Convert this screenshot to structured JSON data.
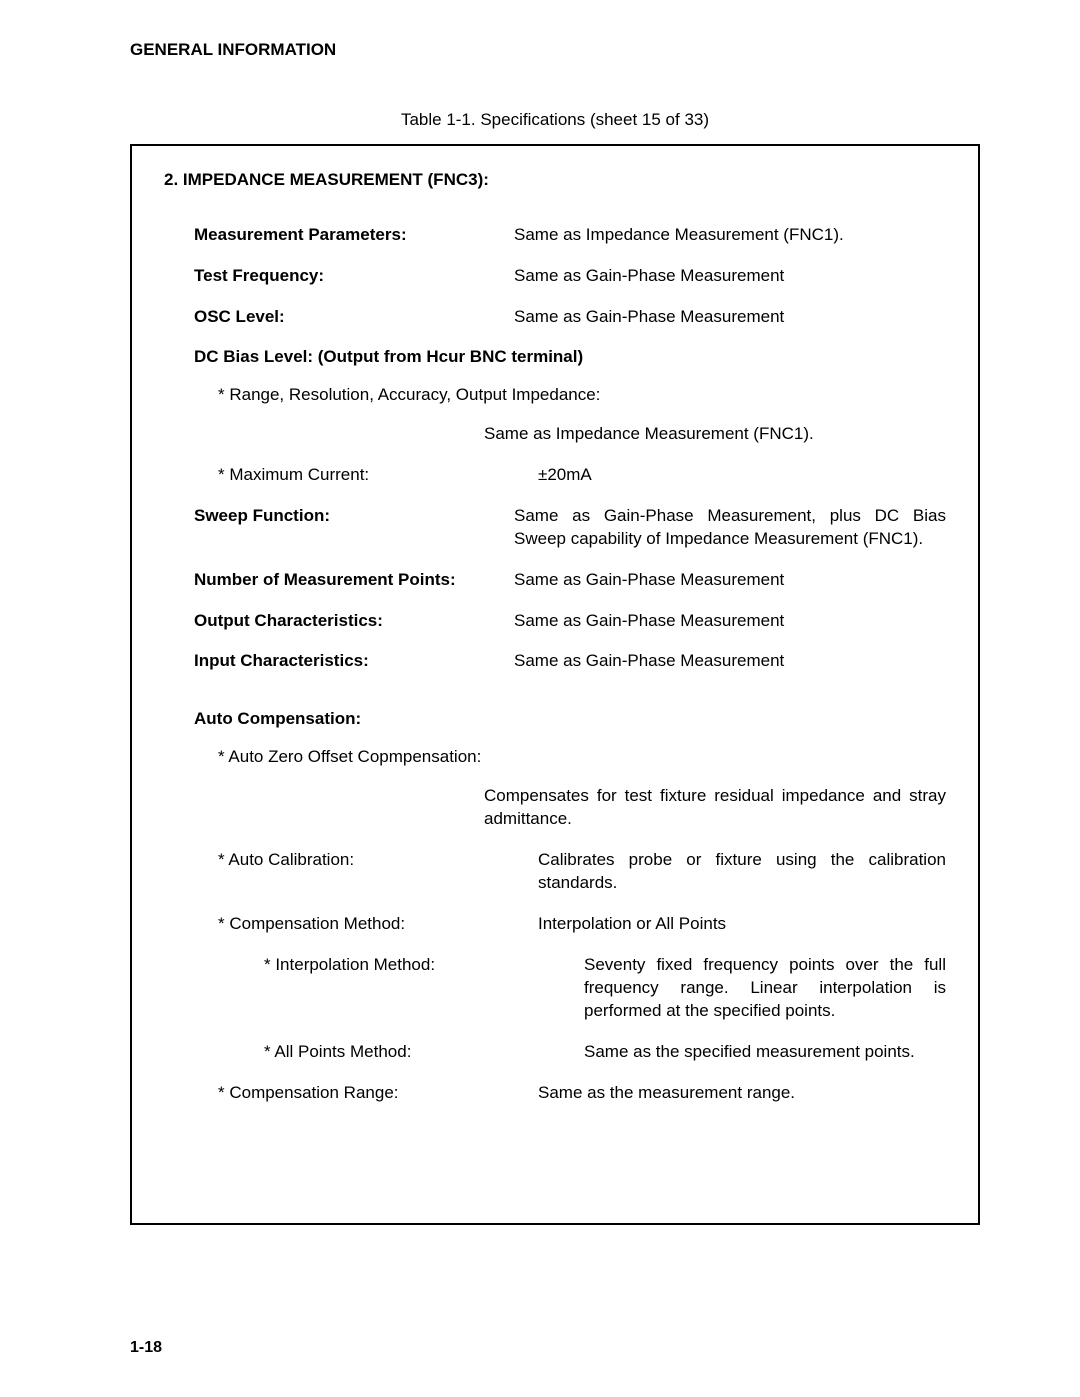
{
  "header": "GENERAL INFORMATION",
  "tableCaption": "Table 1-1. Specifications (sheet 15 of 33)",
  "sectionTitle": "2. IMPEDANCE MEASUREMENT (FNC3):",
  "rows": [
    {
      "label": "Measurement Parameters:",
      "value": "Same as Impedance Measurement (FNC1).",
      "bold": true,
      "indent": 1
    },
    {
      "label": "Test Frequency:",
      "value": "Same as Gain-Phase Measurement",
      "bold": true,
      "indent": 1
    },
    {
      "label": "OSC Level:",
      "value": "Same as Gain-Phase Measurement",
      "bold": true,
      "indent": 1
    }
  ],
  "dcBiasLabel": "DC Bias Level: (Output from Hcur BNC terminal)",
  "dcBiasRows": [
    {
      "label": "* Range, Resolution, Accuracy, Output Impedance:",
      "value": "Same as Impedance Measurement (FNC1).",
      "indent": 2,
      "stack": true
    },
    {
      "label": "* Maximum Current:",
      "value": "±20mA",
      "indent": 2
    }
  ],
  "moreRows": [
    {
      "label": "Sweep Function:",
      "value": "Same as Gain-Phase Measurement, plus DC Bias Sweep capability of Impedance Measurement (FNC1).",
      "bold": true,
      "indent": 1
    },
    {
      "label": "Number of Measurement Points:",
      "value": "Same as Gain-Phase Measurement",
      "bold": true,
      "indent": 1
    },
    {
      "label": "Output Characteristics:",
      "value": "Same as Gain-Phase Measurement",
      "bold": true,
      "indent": 1
    },
    {
      "label": "Input Characteristics:",
      "value": "Same as Gain-Phase Measurement",
      "bold": true,
      "indent": 1
    }
  ],
  "autoCompLabel": "Auto Compensation:",
  "autoCompRows": [
    {
      "label": "* Auto Zero Offset Copmpensation:",
      "value": "Compensates for test fixture residual impedance and stray admittance.",
      "indent": 2,
      "stack": true
    },
    {
      "label": "* Auto Calibration:",
      "value": "Calibrates probe or fixture using the calibration standards.",
      "indent": 2
    },
    {
      "label": "* Compensation Method:",
      "value": "Interpolation or All Points",
      "indent": 2
    },
    {
      "label": "* Interpolation Method:",
      "value": "Seventy fixed frequency points over the full frequency range. Linear interpolation is performed at the specified points.",
      "indent": 3
    },
    {
      "label": "* All Points Method:",
      "value": "Same as the specified measurement points.",
      "indent": 3
    },
    {
      "label": "* Compensation Range:",
      "value": "Same as the measurement range.",
      "indent": 2
    }
  ],
  "pageNum": "1-18"
}
